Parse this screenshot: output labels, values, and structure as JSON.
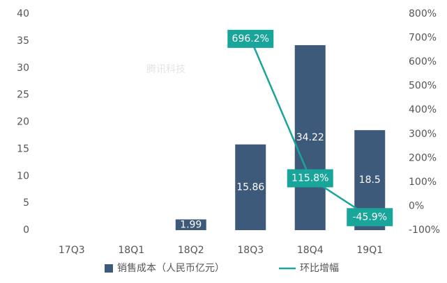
{
  "chart_data": {
    "type": "bar",
    "watermark": "腾讯科技",
    "categories": [
      "17Q3",
      "18Q1",
      "18Q2",
      "18Q3",
      "18Q4",
      "19Q1"
    ],
    "series": [
      {
        "name": "销售成本（人民币亿元）",
        "color": "#3d5a7a",
        "type": "bar",
        "values": [
          null,
          null,
          1.99,
          15.86,
          34.22,
          18.5
        ]
      },
      {
        "name": "环比增幅",
        "color": "#1aa59a",
        "type": "line",
        "axis": "y2",
        "values": [
          null,
          null,
          null,
          696.2,
          115.8,
          -45.9
        ],
        "value_labels": [
          null,
          null,
          null,
          "696.2%",
          "115.8%",
          "-45.9%"
        ]
      }
    ],
    "ylim": [
      0,
      40
    ],
    "yticks": [
      0,
      5,
      10,
      15,
      20,
      25,
      30,
      35,
      40
    ],
    "y2lim": [
      -100,
      800
    ],
    "y2ticks": [
      {
        "value": -100,
        "label": "-100%"
      },
      {
        "value": 0,
        "label": "0%"
      },
      {
        "value": 100,
        "label": "100%"
      },
      {
        "value": 200,
        "label": "200%"
      },
      {
        "value": 300,
        "label": "300%"
      },
      {
        "value": 400,
        "label": "400%"
      },
      {
        "value": 500,
        "label": "500%"
      },
      {
        "value": 600,
        "label": "600%"
      },
      {
        "value": 700,
        "label": "700%"
      },
      {
        "value": 800,
        "label": "800%"
      }
    ],
    "grid": false,
    "legend": "bottom"
  }
}
